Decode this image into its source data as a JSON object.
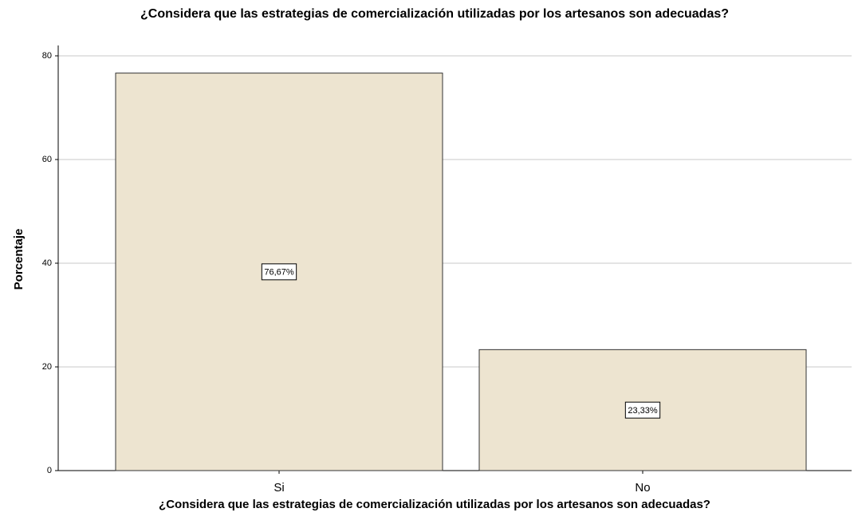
{
  "chart_data": {
    "type": "bar",
    "title": "¿Considera que las estrategias de comercialización utilizadas por los artesanos son adecuadas?",
    "x_label": "¿Considera que las estrategias de comercialización utilizadas por los artesanos son adecuadas?",
    "y_label": "Porcentaje",
    "categories": [
      "Si",
      "No"
    ],
    "values": [
      76.67,
      23.33
    ],
    "value_labels": [
      "76,67%",
      "23,33%"
    ],
    "color": "#ede4d0",
    "ylim": [
      0,
      82
    ],
    "yticks": [
      0,
      20,
      40,
      60,
      80
    ],
    "grid": true
  }
}
